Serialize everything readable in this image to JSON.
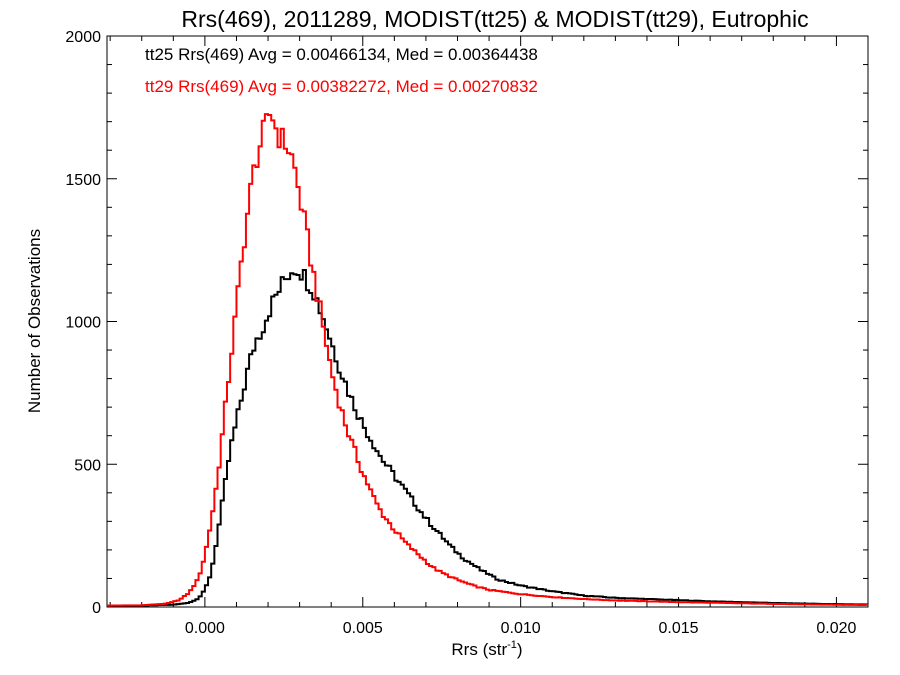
{
  "chart_data": {
    "type": "line",
    "style": "histogram-step",
    "title": "Rrs(469), 2011289, MODIST(tt25) & MODIST(tt29), Eutrophic",
    "xlabel": "Rrs (str",
    "xlabel_sup": "-1",
    "xlabel_close": ")",
    "ylabel": "Number of Observations",
    "xlim": [
      -0.0031,
      0.021
    ],
    "ylim": [
      0,
      2000
    ],
    "xticks": [
      0.0,
      0.005,
      0.01,
      0.015,
      0.02
    ],
    "xtick_labels": [
      "0.000",
      "0.005",
      "0.010",
      "0.015",
      "0.020"
    ],
    "yticks": [
      0,
      500,
      1000,
      1500,
      2000
    ],
    "ytick_labels": [
      "0",
      "500",
      "1000",
      "1500",
      "2000"
    ],
    "grid": false,
    "legend_position": "top-left",
    "series": [
      {
        "name": "tt25",
        "legend": "tt25 Rrs(469) Avg = 0.00466134, Med = 0.00364438",
        "color": "#000000",
        "points": [
          [
            -0.0031,
            5
          ],
          [
            -0.002,
            5
          ],
          [
            -0.001,
            8
          ],
          [
            -0.0005,
            15
          ],
          [
            -0.0002,
            30
          ],
          [
            0.0,
            60
          ],
          [
            0.0002,
            120
          ],
          [
            0.0004,
            250
          ],
          [
            0.0006,
            400
          ],
          [
            0.0008,
            550
          ],
          [
            0.001,
            650
          ],
          [
            0.0012,
            750
          ],
          [
            0.0014,
            850
          ],
          [
            0.0016,
            930
          ],
          [
            0.0018,
            970
          ],
          [
            0.002,
            1030
          ],
          [
            0.0022,
            1080
          ],
          [
            0.0024,
            1120
          ],
          [
            0.0026,
            1160
          ],
          [
            0.0028,
            1190
          ],
          [
            0.003,
            1185
          ],
          [
            0.0032,
            1150
          ],
          [
            0.0034,
            1120
          ],
          [
            0.0036,
            1060
          ],
          [
            0.0038,
            1000
          ],
          [
            0.004,
            930
          ],
          [
            0.0042,
            860
          ],
          [
            0.0044,
            800
          ],
          [
            0.0046,
            740
          ],
          [
            0.0048,
            690
          ],
          [
            0.005,
            640
          ],
          [
            0.0052,
            600
          ],
          [
            0.0054,
            560
          ],
          [
            0.0056,
            520
          ],
          [
            0.0058,
            490
          ],
          [
            0.006,
            460
          ],
          [
            0.0062,
            430
          ],
          [
            0.0064,
            400
          ],
          [
            0.0066,
            370
          ],
          [
            0.0068,
            340
          ],
          [
            0.007,
            310
          ],
          [
            0.0072,
            285
          ],
          [
            0.0074,
            260
          ],
          [
            0.0076,
            235
          ],
          [
            0.0078,
            210
          ],
          [
            0.008,
            190
          ],
          [
            0.0082,
            170
          ],
          [
            0.0084,
            155
          ],
          [
            0.0086,
            140
          ],
          [
            0.0088,
            125
          ],
          [
            0.009,
            115
          ],
          [
            0.0092,
            100
          ],
          [
            0.0095,
            90
          ],
          [
            0.01,
            75
          ],
          [
            0.011,
            55
          ],
          [
            0.012,
            40
          ],
          [
            0.013,
            32
          ],
          [
            0.014,
            28
          ],
          [
            0.015,
            24
          ],
          [
            0.016,
            20
          ],
          [
            0.017,
            17
          ],
          [
            0.018,
            14
          ],
          [
            0.019,
            12
          ],
          [
            0.02,
            10
          ],
          [
            0.021,
            9
          ]
        ]
      },
      {
        "name": "tt29",
        "legend": "tt29 Rrs(469) Avg = 0.00382272, Med = 0.00270832",
        "color": "#ff0000",
        "points": [
          [
            -0.0031,
            5
          ],
          [
            -0.002,
            6
          ],
          [
            -0.0012,
            12
          ],
          [
            -0.0008,
            25
          ],
          [
            -0.0005,
            50
          ],
          [
            -0.0002,
            100
          ],
          [
            0.0,
            180
          ],
          [
            0.0002,
            300
          ],
          [
            0.0004,
            450
          ],
          [
            0.0006,
            650
          ],
          [
            0.0008,
            850
          ],
          [
            0.001,
            1050
          ],
          [
            0.0012,
            1250
          ],
          [
            0.0014,
            1420
          ],
          [
            0.0016,
            1560
          ],
          [
            0.0018,
            1640
          ],
          [
            0.002,
            1700
          ],
          [
            0.0021,
            1750
          ],
          [
            0.0022,
            1690
          ],
          [
            0.0024,
            1640
          ],
          [
            0.0026,
            1620
          ],
          [
            0.0028,
            1560
          ],
          [
            0.003,
            1440
          ],
          [
            0.0032,
            1320
          ],
          [
            0.0034,
            1190
          ],
          [
            0.0036,
            1070
          ],
          [
            0.0038,
            950
          ],
          [
            0.004,
            830
          ],
          [
            0.0042,
            740
          ],
          [
            0.0044,
            660
          ],
          [
            0.0046,
            590
          ],
          [
            0.0048,
            530
          ],
          [
            0.005,
            470
          ],
          [
            0.0052,
            420
          ],
          [
            0.0054,
            370
          ],
          [
            0.0056,
            330
          ],
          [
            0.0058,
            300
          ],
          [
            0.006,
            270
          ],
          [
            0.0062,
            245
          ],
          [
            0.0064,
            220
          ],
          [
            0.0066,
            200
          ],
          [
            0.0068,
            180
          ],
          [
            0.007,
            160
          ],
          [
            0.0072,
            140
          ],
          [
            0.0075,
            120
          ],
          [
            0.008,
            95
          ],
          [
            0.0085,
            75
          ],
          [
            0.009,
            60
          ],
          [
            0.01,
            45
          ],
          [
            0.011,
            35
          ],
          [
            0.012,
            28
          ],
          [
            0.013,
            23
          ],
          [
            0.014,
            20
          ],
          [
            0.015,
            17
          ],
          [
            0.016,
            15
          ],
          [
            0.017,
            13
          ],
          [
            0.018,
            11
          ],
          [
            0.019,
            9
          ],
          [
            0.02,
            8
          ],
          [
            0.021,
            7
          ]
        ]
      }
    ]
  }
}
